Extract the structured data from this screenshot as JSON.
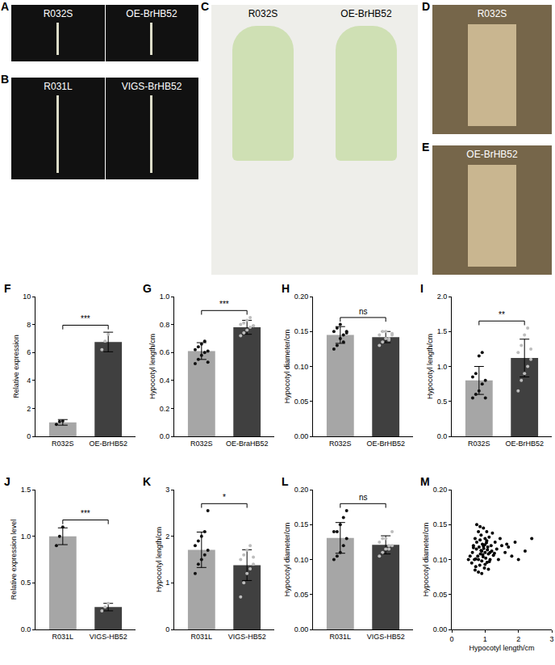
{
  "photo_panels": [
    {
      "letter": "A",
      "labels": [
        "R032S",
        "OE-BrHB52"
      ]
    },
    {
      "letter": "B",
      "labels": [
        "R031L",
        "VIGS-BrHB52"
      ]
    },
    {
      "letter": "C",
      "labels": [
        "R032S",
        "OE-BrHB52"
      ]
    },
    {
      "letter": "D",
      "labels": [
        "R032S"
      ]
    },
    {
      "letter": "E",
      "labels": [
        "OE-BrHB52"
      ]
    }
  ],
  "chart_data": [
    {
      "panel": "F",
      "type": "bar",
      "ylabel": "Relative expression",
      "categories": [
        "R032S",
        "OE-BrHB52"
      ],
      "values": [
        1.0,
        6.75
      ],
      "errors": [
        0.2,
        0.7
      ],
      "points": [
        [
          0.85,
          1.05,
          1.1
        ],
        [
          6.2,
          6.8,
          7.3
        ]
      ],
      "colors": [
        "#a6a6a6",
        "#404040"
      ],
      "annotation": "***",
      "ylim": [
        0,
        10
      ],
      "yticks": [
        0,
        2,
        4,
        6,
        8,
        10
      ]
    },
    {
      "panel": "G",
      "type": "bar",
      "ylabel": "Hypocotyl length/cm",
      "categories": [
        "R032S",
        "OE-BraHB52"
      ],
      "values": [
        0.61,
        0.78
      ],
      "errors": [
        0.06,
        0.05
      ],
      "points": [
        [
          0.52,
          0.55,
          0.58,
          0.6,
          0.61,
          0.62,
          0.64,
          0.66,
          0.68,
          0.53
        ],
        [
          0.72,
          0.74,
          0.76,
          0.78,
          0.79,
          0.8,
          0.81,
          0.83,
          0.85,
          0.79
        ]
      ],
      "colors": [
        "#a6a6a6",
        "#404040"
      ],
      "annotation": "***",
      "ylim": [
        0,
        1.0
      ],
      "yticks": [
        {
          "value": 0,
          "label": "0.0"
        },
        0.2,
        0.4,
        0.6,
        0.8,
        {
          "value": 1.0,
          "label": "1.0"
        }
      ]
    },
    {
      "panel": "H",
      "type": "bar",
      "ylabel": "Hypocotyl diameter/cm",
      "categories": [
        "R032S",
        "OE-BrHB52"
      ],
      "values": [
        0.145,
        0.142
      ],
      "errors": [
        0.012,
        0.008
      ],
      "points": [
        [
          0.125,
          0.13,
          0.14,
          0.145,
          0.15,
          0.15,
          0.155,
          0.16,
          0.135,
          0.148
        ],
        [
          0.13,
          0.135,
          0.14,
          0.14,
          0.145,
          0.145,
          0.15,
          0.15,
          0.138,
          0.147
        ]
      ],
      "colors": [
        "#a6a6a6",
        "#404040"
      ],
      "annotation": "ns",
      "ylim": [
        0,
        0.2
      ],
      "yticks": [
        {
          "value": 0,
          "label": "0.00"
        },
        0.05,
        {
          "value": 0.1,
          "label": "0.10"
        },
        0.15,
        {
          "value": 0.2,
          "label": "0.20"
        }
      ]
    },
    {
      "panel": "I",
      "type": "bar",
      "ylabel": "Hypocotyl length/cm",
      "categories": [
        "R032S",
        "OE-BrHB52"
      ],
      "values": [
        0.8,
        1.12
      ],
      "errors": [
        0.2,
        0.27
      ],
      "points": [
        [
          0.55,
          0.6,
          0.65,
          0.75,
          0.8,
          0.85,
          0.9,
          1.15,
          1.2,
          0.55
        ],
        [
          0.65,
          0.8,
          0.9,
          1.0,
          1.1,
          1.2,
          1.3,
          1.45,
          1.55,
          1.25
        ]
      ],
      "colors": [
        "#a6a6a6",
        "#404040"
      ],
      "annotation": "**",
      "ylim": [
        0,
        2.0
      ],
      "yticks": [
        {
          "value": 0,
          "label": "0.0"
        },
        0.5,
        {
          "value": 1.0,
          "label": "1.0"
        },
        1.5,
        {
          "value": 2.0,
          "label": "2.0"
        }
      ]
    },
    {
      "panel": "J",
      "type": "bar",
      "ylabel": "Relative expression level",
      "categories": [
        "R031L",
        "VIGS-HB52"
      ],
      "values": [
        1.0,
        0.24
      ],
      "errors": [
        0.09,
        0.04
      ],
      "points": [
        [
          0.9,
          1.0,
          1.1
        ],
        [
          0.2,
          0.24,
          0.28
        ]
      ],
      "colors": [
        "#a6a6a6",
        "#404040"
      ],
      "annotation": "***",
      "ylim": [
        0,
        1.5
      ],
      "yticks": [
        {
          "value": 0,
          "label": "0.0"
        },
        0.5,
        {
          "value": 1.0,
          "label": "1.0"
        },
        1.5
      ]
    },
    {
      "panel": "K",
      "type": "bar",
      "ylabel": "Hypocotyl length/cm",
      "categories": [
        "R031L",
        "VIGS-HB52"
      ],
      "values": [
        1.71,
        1.38
      ],
      "errors": [
        0.38,
        0.33
      ],
      "points": [
        [
          1.2,
          1.4,
          1.5,
          1.6,
          1.7,
          1.8,
          1.9,
          2.0,
          2.1,
          2.55
        ],
        [
          0.7,
          1.0,
          1.2,
          1.3,
          1.4,
          1.5,
          1.6,
          1.7,
          1.8,
          1.55
        ]
      ],
      "colors": [
        "#a6a6a6",
        "#404040"
      ],
      "annotation": "*",
      "ylim": [
        0,
        3
      ],
      "yticks": [
        0,
        1,
        2,
        3
      ]
    },
    {
      "panel": "L",
      "type": "bar",
      "ylabel": "Hypocotyl diameter/cm",
      "categories": [
        "R031L",
        "VIGS-HB52"
      ],
      "values": [
        0.131,
        0.121
      ],
      "errors": [
        0.022,
        0.013
      ],
      "points": [
        [
          0.1,
          0.105,
          0.11,
          0.12,
          0.13,
          0.14,
          0.14,
          0.15,
          0.16,
          0.17
        ],
        [
          0.105,
          0.11,
          0.115,
          0.12,
          0.12,
          0.125,
          0.13,
          0.13,
          0.115,
          0.14
        ]
      ],
      "colors": [
        "#a6a6a6",
        "#404040"
      ],
      "annotation": "ns",
      "ylim": [
        0,
        0.2
      ],
      "yticks": [
        {
          "value": 0,
          "label": "0.00"
        },
        0.05,
        {
          "value": 0.1,
          "label": "0.10"
        },
        0.15,
        {
          "value": 0.2,
          "label": "0.20"
        }
      ]
    },
    {
      "panel": "M",
      "type": "scatter",
      "xlabel": "Hypocotyl length/cm",
      "ylabel": "Hypocotyl diameter/cm",
      "x": [
        0.55,
        0.6,
        0.62,
        0.65,
        0.68,
        0.7,
        0.72,
        0.74,
        0.75,
        0.78,
        0.8,
        0.8,
        0.82,
        0.84,
        0.85,
        0.86,
        0.88,
        0.9,
        0.9,
        0.92,
        0.94,
        0.95,
        0.96,
        0.98,
        1.0,
        1.0,
        1.02,
        1.04,
        1.05,
        1.06,
        1.08,
        1.1,
        1.12,
        1.15,
        1.18,
        1.2,
        1.22,
        1.25,
        1.3,
        1.35,
        1.4,
        1.45,
        1.5,
        1.6,
        1.7,
        1.8,
        1.9,
        2.0,
        2.2,
        2.4,
        0.7,
        0.75,
        0.8,
        0.85,
        0.9,
        0.95,
        1.0,
        1.05,
        1.1,
        1.15,
        0.65,
        0.72,
        0.88,
        0.93,
        0.99,
        1.07,
        1.13,
        1.28,
        0.5,
        1.65
      ],
      "y": [
        0.105,
        0.095,
        0.11,
        0.12,
        0.1,
        0.13,
        0.09,
        0.115,
        0.125,
        0.105,
        0.14,
        0.1,
        0.118,
        0.092,
        0.128,
        0.108,
        0.135,
        0.112,
        0.098,
        0.122,
        0.104,
        0.145,
        0.116,
        0.088,
        0.11,
        0.13,
        0.102,
        0.124,
        0.14,
        0.096,
        0.118,
        0.108,
        0.132,
        0.1,
        0.12,
        0.112,
        0.138,
        0.106,
        0.125,
        0.115,
        0.1,
        0.13,
        0.12,
        0.11,
        0.118,
        0.105,
        0.125,
        0.1,
        0.112,
        0.13,
        0.085,
        0.15,
        0.082,
        0.147,
        0.08,
        0.119,
        0.093,
        0.127,
        0.086,
        0.11,
        0.117,
        0.101,
        0.113,
        0.107,
        0.121,
        0.114,
        0.097,
        0.109,
        0.1,
        0.122
      ],
      "color": "#000000",
      "marker": "circle",
      "xlim": [
        0,
        3
      ],
      "xticks": [
        0,
        1,
        2,
        3
      ],
      "ylim": [
        0,
        0.2
      ],
      "yticks": [
        {
          "value": 0,
          "label": "0.00"
        },
        0.05,
        {
          "value": 0.1,
          "label": "0.10"
        },
        0.15,
        {
          "value": 0.2,
          "label": "0.20"
        }
      ]
    }
  ]
}
